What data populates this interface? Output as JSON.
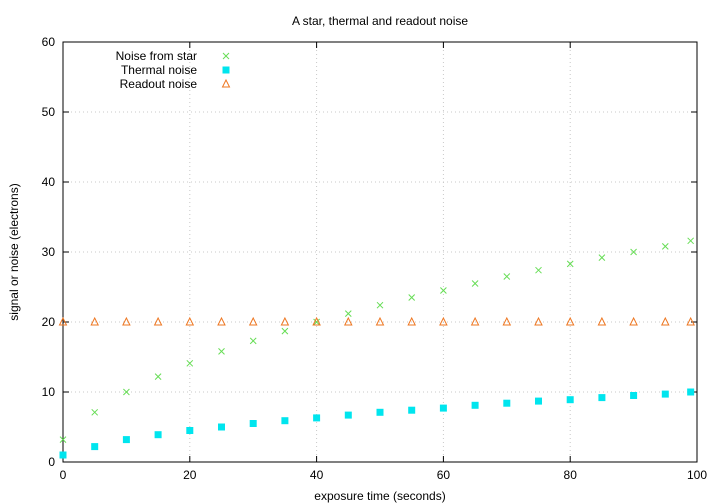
{
  "chart_data": {
    "type": "scatter",
    "title": "A star, thermal and readout noise",
    "xlabel": "exposure time (seconds)",
    "ylabel": "signal or noise (electrons)",
    "xlim": [
      0,
      100
    ],
    "ylim": [
      0,
      60
    ],
    "xticks": [
      0,
      20,
      40,
      60,
      80,
      100
    ],
    "yticks": [
      0,
      10,
      20,
      30,
      40,
      50,
      60
    ],
    "grid": true,
    "legend_position": "top-left",
    "series": [
      {
        "name": "Noise from star",
        "marker": "cross",
        "color": "#66dd55",
        "x": [
          0,
          5,
          10,
          15,
          20,
          25,
          30,
          35,
          40,
          45,
          50,
          55,
          60,
          65,
          70,
          75,
          80,
          85,
          90,
          95,
          99
        ],
        "y": [
          3.2,
          7.1,
          10.0,
          12.2,
          14.1,
          15.8,
          17.3,
          18.7,
          20.0,
          21.2,
          22.4,
          23.5,
          24.5,
          25.5,
          26.5,
          27.4,
          28.3,
          29.2,
          30.0,
          30.8,
          31.6
        ]
      },
      {
        "name": "Thermal noise",
        "marker": "square",
        "color": "#00e5ee",
        "x": [
          0,
          5,
          10,
          15,
          20,
          25,
          30,
          35,
          40,
          45,
          50,
          55,
          60,
          65,
          70,
          75,
          80,
          85,
          90,
          95,
          99
        ],
        "y": [
          1.0,
          2.2,
          3.2,
          3.9,
          4.5,
          5.0,
          5.5,
          5.9,
          6.3,
          6.7,
          7.1,
          7.4,
          7.7,
          8.1,
          8.4,
          8.7,
          8.9,
          9.2,
          9.5,
          9.7,
          10.0
        ]
      },
      {
        "name": "Readout noise",
        "marker": "triangle",
        "color": "#ee7722",
        "x": [
          0,
          5,
          10,
          15,
          20,
          25,
          30,
          35,
          40,
          45,
          50,
          55,
          60,
          65,
          70,
          75,
          80,
          85,
          90,
          95,
          99
        ],
        "y": [
          20,
          20,
          20,
          20,
          20,
          20,
          20,
          20,
          20,
          20,
          20,
          20,
          20,
          20,
          20,
          20,
          20,
          20,
          20,
          20,
          20
        ]
      }
    ]
  }
}
